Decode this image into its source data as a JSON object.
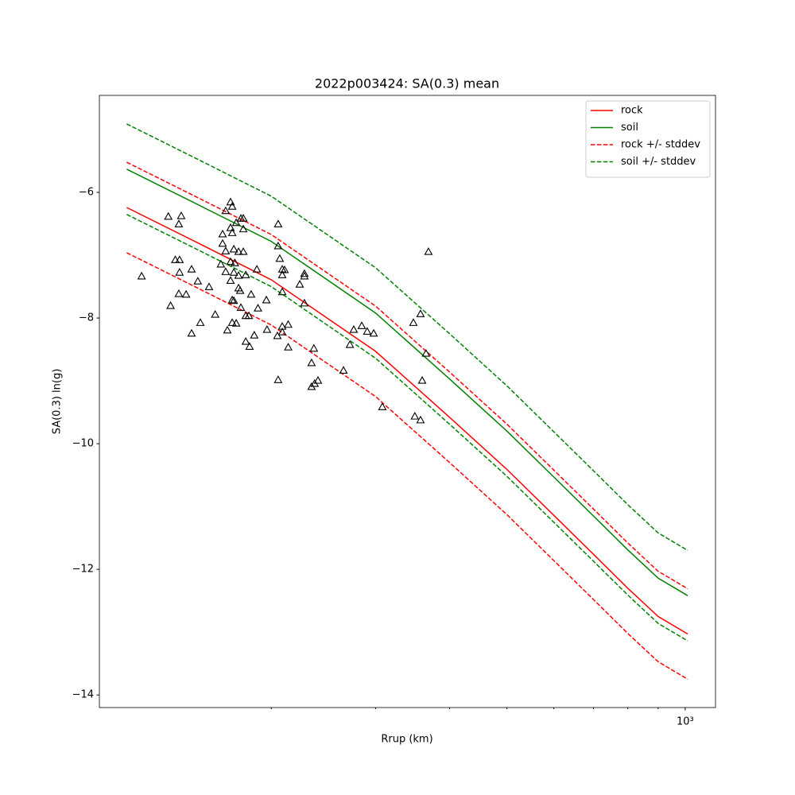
{
  "chart_data": {
    "type": "line",
    "title": "2022p003424: SA(0.3) mean",
    "xlabel": "Rrup (km)",
    "ylabel": "SA(0.3) ln(g)",
    "xscale": "log",
    "xlim": [
      102.5,
      1125
    ],
    "xticks": [
      {
        "value": 1000,
        "label": "10³"
      }
    ],
    "xminorticks": [
      200,
      300,
      400,
      500,
      600,
      700,
      800,
      900
    ],
    "ylim": [
      -14.2,
      -4.456
    ],
    "yticks": [
      {
        "value": -6,
        "label": "−6"
      },
      {
        "value": -8,
        "label": "−8"
      },
      {
        "value": -10,
        "label": "−10"
      },
      {
        "value": -12,
        "label": "−12"
      },
      {
        "value": -14,
        "label": "−14"
      }
    ],
    "legend": "upper right",
    "x": [
      114,
      150,
      200,
      300,
      400,
      500,
      600,
      700,
      800,
      900,
      1010
    ],
    "series": [
      {
        "name": "rock",
        "color": "#ff0000",
        "style": "solid",
        "values": [
          -6.24,
          -6.8,
          -7.39,
          -8.53,
          -9.58,
          -10.41,
          -11.14,
          -11.76,
          -12.3,
          -12.75,
          -13.03
        ]
      },
      {
        "name": "soil",
        "color": "#008000",
        "style": "solid",
        "values": [
          -5.63,
          -6.19,
          -6.78,
          -7.92,
          -8.97,
          -9.8,
          -10.53,
          -11.15,
          -11.69,
          -12.14,
          -12.42
        ]
      },
      {
        "name": "rock +/- stddev",
        "color": "#ff0000",
        "style": "dashed",
        "values": [
          -5.52,
          -6.08,
          -6.67,
          -7.81,
          -8.86,
          -9.69,
          -10.42,
          -11.04,
          -11.58,
          -12.03,
          -12.31
        ]
      },
      {
        "color": "#ff0000",
        "style": "dashed",
        "values": [
          -6.96,
          -7.52,
          -8.11,
          -9.25,
          -10.3,
          -11.13,
          -11.86,
          -12.48,
          -13.02,
          -13.47,
          -13.75
        ]
      },
      {
        "name": "soil +/- stddev",
        "color": "#008000",
        "style": "dashed",
        "values": [
          -4.91,
          -5.47,
          -6.06,
          -7.2,
          -8.25,
          -9.08,
          -9.81,
          -10.43,
          -10.97,
          -11.42,
          -11.7
        ]
      },
      {
        "color": "#008000",
        "style": "dashed",
        "values": [
          -6.35,
          -6.91,
          -7.5,
          -8.64,
          -9.69,
          -10.52,
          -11.25,
          -11.87,
          -12.41,
          -12.86,
          -13.14
        ]
      }
    ],
    "points": {
      "color": "#000000",
      "x": [
        120.8,
        134,
        135.2,
        137.7,
        139.6,
        139.6,
        140,
        140,
        140.9,
        143.6,
        146.7,
        146.7,
        150.3,
        151.8,
        157,
        160.8,
        164.4,
        165.5,
        165.5,
        167.5,
        167.5,
        167.5,
        168.6,
        170.7,
        170.7,
        170.7,
        170.7,
        171.8,
        171.8,
        171.8,
        171.8,
        172.9,
        172.9,
        172.9,
        173.6,
        174.5,
        174.5,
        176.1,
        176.1,
        176.1,
        177.7,
        177.7,
        177.2,
        179.4,
        179.4,
        179.4,
        181.1,
        181.1,
        181.1,
        183.3,
        184.9,
        183.8,
        187.2,
        189.1,
        189.9,
        196.2,
        196.7,
        204.8,
        205.4,
        205.4,
        205.4,
        206.7,
        208.7,
        208.7,
        208.7,
        208.7,
        208.7,
        210.6,
        213.6,
        213.6,
        223.4,
        227.5,
        227.5,
        227.5,
        233.9,
        233.9,
        236,
        236.7,
        239.8,
        264.8,
        271.5,
        275.6,
        284.3,
        290.4,
        297.8,
        308,
        347.5,
        349.5,
        357.3,
        357.3,
        359.6,
        365,
        368.5
      ],
      "y": [
        -7.34,
        -6.39,
        -7.81,
        -7.08,
        -6.51,
        -7.62,
        -7.08,
        -7.28,
        -6.38,
        -7.63,
        -7.23,
        -8.25,
        -7.42,
        -8.08,
        -7.51,
        -7.95,
        -7.15,
        -6.67,
        -6.82,
        -6.3,
        -7.27,
        -6.94,
        -8.2,
        -6.16,
        -6.57,
        -7.11,
        -7.41,
        -6.23,
        -6.65,
        -8.08,
        -7.72,
        -6.91,
        -7.28,
        -7.73,
        -7.13,
        -8.09,
        -6.49,
        -7.53,
        -7.33,
        -6.95,
        -6.42,
        -7.84,
        -7.57,
        -6.59,
        -6.95,
        -6.42,
        -7.97,
        -8.38,
        -7.32,
        -7.97,
        -7.63,
        -8.46,
        -8.28,
        -7.23,
        -7.85,
        -7.72,
        -8.19,
        -8.29,
        -6.51,
        -6.86,
        -8.99,
        -7.06,
        -7.23,
        -7.32,
        -7.59,
        -8.14,
        -8.23,
        -7.24,
        -8.47,
        -8.11,
        -7.47,
        -7.3,
        -7.34,
        -7.77,
        -8.72,
        -9.1,
        -8.49,
        -9.05,
        -9.0,
        -8.84,
        -8.43,
        -8.19,
        -8.13,
        -8.22,
        -8.25,
        -9.42,
        -8.08,
        -9.57,
        -7.94,
        -9.63,
        -9.0,
        -8.57,
        -6.95
      ]
    }
  }
}
